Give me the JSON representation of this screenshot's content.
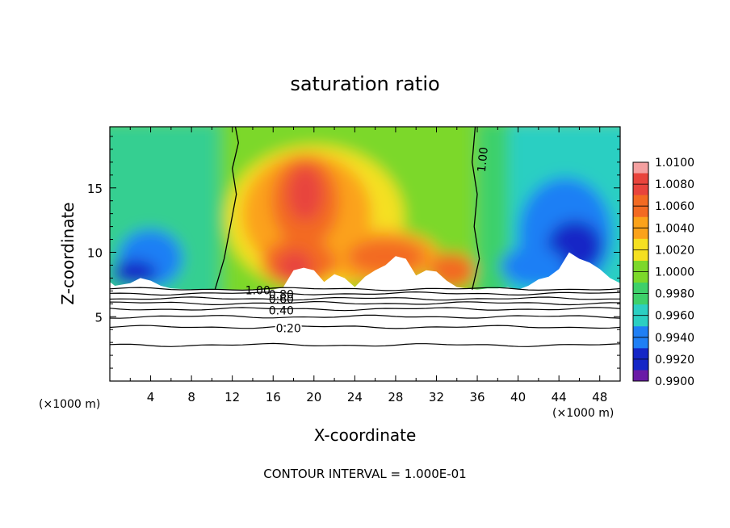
{
  "chart_data": {
    "type": "heatmap",
    "title": "saturation ratio",
    "xlabel": "X-coordinate",
    "ylabel": "Z-coordinate",
    "x_unit_left": "(×1000 m)",
    "x_unit_right": "(×1000 m)",
    "xlim": [
      0,
      50
    ],
    "ylim": [
      0,
      19.75
    ],
    "x_ticks": [
      "4",
      "8",
      "12",
      "16",
      "20",
      "24",
      "28",
      "32",
      "36",
      "40",
      "44",
      "48"
    ],
    "y_ticks": [
      "5",
      "10",
      "15"
    ],
    "grid": false,
    "legend": "right",
    "colorbar": {
      "levels": [
        "1.0100",
        "1.0080",
        "1.0060",
        "1.0040",
        "1.0020",
        "1.0000",
        "0.9980",
        "0.9960",
        "0.9940",
        "0.9920",
        "0.9900"
      ],
      "colors": [
        "#f4a0a0",
        "#e8443c",
        "#f36a22",
        "#fba21a",
        "#f5e021",
        "#7cd82a",
        "#3ed06a",
        "#2ccfc2",
        "#1f7ff5",
        "#1426c6",
        "#6a1aa6"
      ]
    },
    "surface_height_profile": {
      "x": [
        0,
        0.5,
        2,
        3,
        4,
        5,
        6,
        8,
        10,
        12,
        14,
        16,
        17,
        18,
        19,
        20,
        21,
        22,
        23,
        24,
        25,
        26,
        27,
        28,
        29,
        30,
        31,
        32,
        33,
        34,
        35,
        36,
        37,
        38,
        39,
        40,
        41,
        42,
        43,
        44,
        45,
        46,
        47,
        48,
        49,
        50
      ],
      "z": [
        7.7,
        7.4,
        7.6,
        8.0,
        7.8,
        7.4,
        7.2,
        7.1,
        7.1,
        7.1,
        7.1,
        7.1,
        7.3,
        8.6,
        8.8,
        8.6,
        7.7,
        8.3,
        8.0,
        7.3,
        8.1,
        8.6,
        9.0,
        9.7,
        9.5,
        8.2,
        8.6,
        8.5,
        7.8,
        7.3,
        7.2,
        7.1,
        7.2,
        7.2,
        7.3,
        7.1,
        7.4,
        7.9,
        8.1,
        8.7,
        10.0,
        9.5,
        9.2,
        8.7,
        8.0,
        7.6
      ]
    },
    "contours": [
      {
        "level": "1.00",
        "labeled": true,
        "kind": "supersaturation boundary left",
        "x": [
          10.3,
          11.2,
          11.8,
          12.4,
          12.0,
          12.6,
          12.3
        ],
        "z": [
          7.1,
          9.5,
          12.0,
          14.5,
          16.5,
          18.5,
          19.75
        ]
      },
      {
        "level": "1.00",
        "labeled": true,
        "kind": "supersaturation boundary right",
        "x": [
          35.5,
          36.2,
          35.7,
          36.0,
          35.5,
          35.8
        ],
        "z": [
          7.1,
          9.5,
          12.0,
          14.5,
          17.0,
          19.75
        ]
      },
      {
        "level": "1.00",
        "labeled": true,
        "z_mean": 7.15
      },
      {
        "level": "0.80",
        "labeled": true,
        "z_mean": 6.8
      },
      {
        "level": "0.60",
        "labeled": true,
        "z_mean": 6.4
      },
      {
        "level": "0.50",
        "labeled": false,
        "z_mean": 6.05
      },
      {
        "level": "0.40",
        "labeled": true,
        "z_mean": 5.6
      },
      {
        "level": "0.30",
        "labeled": false,
        "z_mean": 5.0
      },
      {
        "level": "0.20",
        "labeled": true,
        "z_mean": 4.2
      },
      {
        "level": "0.10",
        "labeled": false,
        "z_mean": 2.8
      }
    ],
    "contour_labels": [
      "1.00",
      "1.00",
      "0.80",
      "0.60",
      "0.40",
      "0.20"
    ],
    "annotation": "CONTOUR INTERVAL = 1.000E-01"
  }
}
